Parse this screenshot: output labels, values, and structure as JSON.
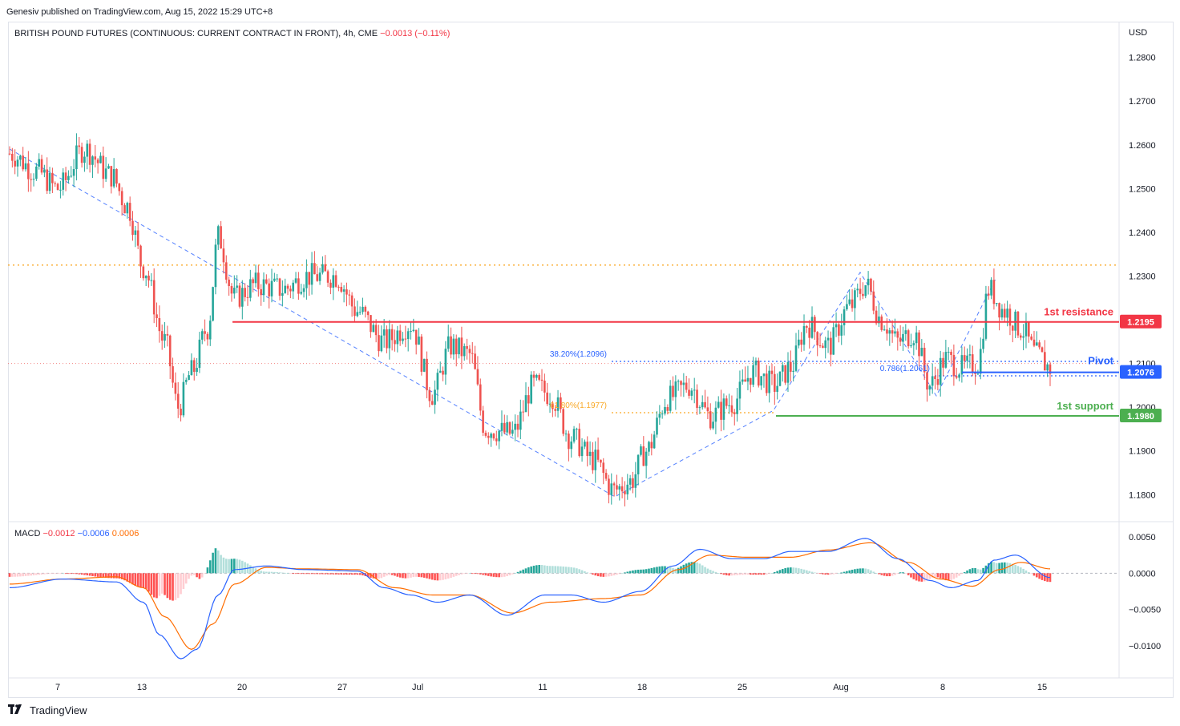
{
  "header": {
    "credit": "Genesiv published on TradingView.com, Aug 15, 2022 15:29 UTC+8"
  },
  "legend": {
    "symbol": "BRITISH POUND FUTURES (CONTINUOUS: CURRENT CONTRACT IN FRONT), 4h, CME",
    "change": "−0.0013 (−0.11%)"
  },
  "macd_legend": {
    "label": "MACD",
    "hist": "−0.0012",
    "macd": "−0.0006",
    "signal": "0.0006"
  },
  "footer": {
    "brand": "TradingView",
    "logo": "tradingview-logo-icon"
  },
  "colors": {
    "up": "#26a69a",
    "down": "#ef5350",
    "resistance": "#f23645",
    "support": "#4caf50",
    "pivot": "#2962ff",
    "fib_orange": "#f9a825",
    "macd_line": "#2962ff",
    "signal_line": "#ff6d00"
  },
  "chart_data": [
    {
      "type": "candlestick",
      "title": "BRITISH POUND FUTURES (CONTINUOUS: CURRENT CONTRACT IN FRONT), 4h, CME",
      "ylabel": "USD",
      "ylim": [
        1.174,
        1.288
      ],
      "y_ticks": [
        "1.2800",
        "1.2700",
        "1.2600",
        "1.2500",
        "1.2400",
        "1.2300",
        "1.2100",
        "1.2000",
        "1.1900",
        "1.1800"
      ],
      "x_ticks": [
        "7",
        "13",
        "20",
        "27",
        "Jul",
        "11",
        "18",
        "25",
        "Aug",
        "8",
        "15"
      ],
      "anchors": [
        {
          "t": 0,
          "v": 1.258
        },
        {
          "t": 10,
          "v": 1.254
        },
        {
          "t": 18,
          "v": 1.25
        },
        {
          "t": 28,
          "v": 1.259
        },
        {
          "t": 38,
          "v": 1.253
        },
        {
          "t": 44,
          "v": 1.246
        },
        {
          "t": 50,
          "v": 1.232
        },
        {
          "t": 58,
          "v": 1.215
        },
        {
          "t": 63,
          "v": 1.2
        },
        {
          "t": 68,
          "v": 1.208
        },
        {
          "t": 74,
          "v": 1.218
        },
        {
          "t": 78,
          "v": 1.239
        },
        {
          "t": 84,
          "v": 1.225
        },
        {
          "t": 92,
          "v": 1.228
        },
        {
          "t": 102,
          "v": 1.227
        },
        {
          "t": 112,
          "v": 1.23
        },
        {
          "t": 122,
          "v": 1.23
        },
        {
          "t": 130,
          "v": 1.222
        },
        {
          "t": 140,
          "v": 1.215
        },
        {
          "t": 150,
          "v": 1.219
        },
        {
          "t": 158,
          "v": 1.203
        },
        {
          "t": 165,
          "v": 1.214
        },
        {
          "t": 172,
          "v": 1.212
        },
        {
          "t": 178,
          "v": 1.195
        },
        {
          "t": 188,
          "v": 1.194
        },
        {
          "t": 196,
          "v": 1.205
        },
        {
          "t": 202,
          "v": 1.203
        },
        {
          "t": 210,
          "v": 1.193
        },
        {
          "t": 218,
          "v": 1.188
        },
        {
          "t": 226,
          "v": 1.181
        },
        {
          "t": 232,
          "v": 1.183
        },
        {
          "t": 238,
          "v": 1.19
        },
        {
          "t": 246,
          "v": 1.202
        },
        {
          "t": 254,
          "v": 1.205
        },
        {
          "t": 262,
          "v": 1.198
        },
        {
          "t": 270,
          "v": 1.201
        },
        {
          "t": 278,
          "v": 1.208
        },
        {
          "t": 286,
          "v": 1.205
        },
        {
          "t": 292,
          "v": 1.209
        },
        {
          "t": 298,
          "v": 1.219
        },
        {
          "t": 306,
          "v": 1.214
        },
        {
          "t": 314,
          "v": 1.223
        },
        {
          "t": 320,
          "v": 1.228
        },
        {
          "t": 326,
          "v": 1.22
        },
        {
          "t": 332,
          "v": 1.215
        },
        {
          "t": 338,
          "v": 1.217
        },
        {
          "t": 344,
          "v": 1.205
        },
        {
          "t": 350,
          "v": 1.211
        },
        {
          "t": 356,
          "v": 1.209
        },
        {
          "t": 362,
          "v": 1.21
        },
        {
          "t": 366,
          "v": 1.227
        },
        {
          "t": 372,
          "v": 1.222
        },
        {
          "t": 378,
          "v": 1.218
        },
        {
          "t": 384,
          "v": 1.212
        },
        {
          "t": 389,
          "v": 1.209
        }
      ],
      "levels": [
        {
          "name": "1st resistance",
          "price": 1.2195,
          "tag": "1.2195"
        },
        {
          "name": "Pivot",
          "price": 1.2076,
          "tag": "1.2076"
        },
        {
          "name": "1st support",
          "price": 1.198,
          "tag": "1.1980"
        }
      ],
      "fib_labels": [
        "38.20%(1.2096)",
        "61.80%(1.1977)",
        "0.786(1.2061)"
      ],
      "horizontal_dotted": [
        1.2325,
        1.21
      ]
    },
    {
      "type": "line",
      "title": "MACD",
      "ylim": [
        -0.014,
        0.007
      ],
      "y_ticks": [
        "0.0050",
        "0.0000",
        "−0.0050",
        "−0.0100"
      ],
      "series": [
        {
          "name": "MACD",
          "anchors": [
            {
              "t": 0,
              "v": -0.002
            },
            {
              "t": 20,
              "v": -0.0008
            },
            {
              "t": 40,
              "v": -0.0012
            },
            {
              "t": 50,
              "v": -0.004
            },
            {
              "t": 56,
              "v": -0.0085
            },
            {
              "t": 64,
              "v": -0.0118
            },
            {
              "t": 70,
              "v": -0.0105
            },
            {
              "t": 78,
              "v": -0.003
            },
            {
              "t": 84,
              "v": 0.0005
            },
            {
              "t": 96,
              "v": 0.001
            },
            {
              "t": 110,
              "v": 0.0005
            },
            {
              "t": 130,
              "v": 0.0003
            },
            {
              "t": 140,
              "v": -0.002
            },
            {
              "t": 150,
              "v": -0.003
            },
            {
              "t": 160,
              "v": -0.004
            },
            {
              "t": 172,
              "v": -0.003
            },
            {
              "t": 186,
              "v": -0.0058
            },
            {
              "t": 200,
              "v": -0.003
            },
            {
              "t": 210,
              "v": -0.003
            },
            {
              "t": 222,
              "v": -0.004
            },
            {
              "t": 236,
              "v": -0.0025
            },
            {
              "t": 248,
              "v": 0.001
            },
            {
              "t": 258,
              "v": 0.0033
            },
            {
              "t": 270,
              "v": 0.002
            },
            {
              "t": 282,
              "v": 0.002
            },
            {
              "t": 292,
              "v": 0.003
            },
            {
              "t": 306,
              "v": 0.003
            },
            {
              "t": 320,
              "v": 0.0048
            },
            {
              "t": 332,
              "v": 0.002
            },
            {
              "t": 344,
              "v": -0.001
            },
            {
              "t": 352,
              "v": -0.002
            },
            {
              "t": 362,
              "v": -0.001
            },
            {
              "t": 368,
              "v": 0.0018
            },
            {
              "t": 376,
              "v": 0.0025
            },
            {
              "t": 389,
              "v": -0.0006
            }
          ]
        },
        {
          "name": "Signal",
          "anchors": [
            {
              "t": 0,
              "v": -0.0015
            },
            {
              "t": 20,
              "v": -0.0008
            },
            {
              "t": 40,
              "v": -0.0005
            },
            {
              "t": 50,
              "v": -0.002
            },
            {
              "t": 58,
              "v": -0.006
            },
            {
              "t": 68,
              "v": -0.0105
            },
            {
              "t": 76,
              "v": -0.007
            },
            {
              "t": 84,
              "v": -0.0015
            },
            {
              "t": 96,
              "v": 0.0008
            },
            {
              "t": 110,
              "v": 0.0006
            },
            {
              "t": 130,
              "v": 0.0005
            },
            {
              "t": 144,
              "v": -0.002
            },
            {
              "t": 158,
              "v": -0.003
            },
            {
              "t": 172,
              "v": -0.003
            },
            {
              "t": 188,
              "v": -0.0055
            },
            {
              "t": 202,
              "v": -0.004
            },
            {
              "t": 222,
              "v": -0.0035
            },
            {
              "t": 236,
              "v": -0.003
            },
            {
              "t": 250,
              "v": 0.0005
            },
            {
              "t": 262,
              "v": 0.0025
            },
            {
              "t": 276,
              "v": 0.0022
            },
            {
              "t": 292,
              "v": 0.0022
            },
            {
              "t": 306,
              "v": 0.0032
            },
            {
              "t": 322,
              "v": 0.0042
            },
            {
              "t": 336,
              "v": 0.0015
            },
            {
              "t": 348,
              "v": -0.0008
            },
            {
              "t": 360,
              "v": -0.0018
            },
            {
              "t": 370,
              "v": 0.0005
            },
            {
              "t": 378,
              "v": 0.0015
            },
            {
              "t": 389,
              "v": 0.0006
            }
          ]
        }
      ]
    }
  ]
}
